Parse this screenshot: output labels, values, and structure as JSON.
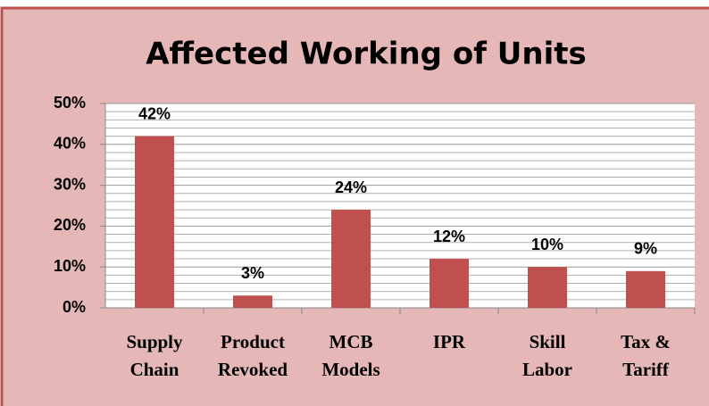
{
  "chart_data": {
    "type": "bar",
    "title": "Affected Working of Units",
    "categories": [
      [
        "Supply",
        "Chain"
      ],
      [
        "Product",
        "Revoked"
      ],
      [
        "MCB",
        "Models"
      ],
      [
        "IPR"
      ],
      [
        "Skill",
        "Labor"
      ],
      [
        "Tax &",
        "Tariff"
      ]
    ],
    "values": [
      42,
      3,
      24,
      12,
      10,
      9
    ],
    "value_labels": [
      "42%",
      "3%",
      "24%",
      "12%",
      "10%",
      "9%"
    ],
    "color": "#c0504d",
    "ylim": [
      0,
      50
    ],
    "yticks": [
      {
        "value": 0,
        "label": "0%"
      },
      {
        "value": 10,
        "label": "10%"
      },
      {
        "value": 20,
        "label": "20%"
      },
      {
        "value": 30,
        "label": "30%"
      },
      {
        "value": 40,
        "label": "40%"
      },
      {
        "value": 50,
        "label": "50%"
      }
    ],
    "yminorticks": [
      2,
      4,
      6,
      8,
      12,
      14,
      16,
      18,
      22,
      24,
      26,
      28,
      32,
      34,
      36,
      38,
      42,
      44,
      46,
      48
    ],
    "grid": true
  }
}
